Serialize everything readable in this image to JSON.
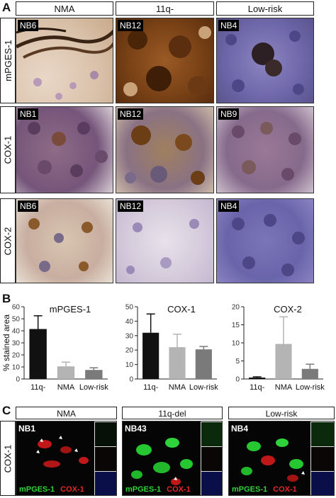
{
  "panel_a": {
    "letter": "A",
    "columns": [
      "NMA",
      "11q-",
      "Low-risk"
    ],
    "rows": [
      {
        "label": "mPGES-1",
        "samples": [
          "NB6",
          "NB12",
          "NB4"
        ]
      },
      {
        "label": "COX-1",
        "samples": [
          "NB1",
          "NB12",
          "NB9"
        ]
      },
      {
        "label": "COX-2",
        "samples": [
          "NB6",
          "NB12",
          "NB4"
        ]
      }
    ]
  },
  "panel_b": {
    "letter": "B"
  },
  "chart_data": [
    {
      "type": "bar",
      "title": "mPGES-1",
      "ylabel": "% stained area",
      "categories": [
        "11q-",
        "NMA",
        "Low-risk"
      ],
      "values": [
        41.5,
        10.5,
        7.5
      ],
      "errors": [
        11,
        3.5,
        1.8
      ],
      "ylim": [
        0,
        60
      ],
      "yticks": [
        0,
        10,
        20,
        30,
        40,
        50,
        60
      ],
      "colors": [
        "#111111",
        "#b4b4b4",
        "#7a7a7a"
      ]
    },
    {
      "type": "bar",
      "title": "COX-1",
      "ylabel": "",
      "categories": [
        "11q-",
        "NMA",
        "Low-risk"
      ],
      "values": [
        32,
        22,
        20.5
      ],
      "errors": [
        13,
        9,
        2
      ],
      "ylim": [
        0,
        50
      ],
      "yticks": [
        0,
        10,
        20,
        30,
        40,
        50
      ],
      "colors": [
        "#111111",
        "#b4b4b4",
        "#7a7a7a"
      ]
    },
    {
      "type": "bar",
      "title": "COX-2",
      "ylabel": "",
      "categories": [
        "11q-",
        "NMA",
        "Low-risk"
      ],
      "values": [
        0.4,
        9.7,
        2.8
      ],
      "errors": [
        0.2,
        7.5,
        1.3
      ],
      "ylim": [
        0,
        20
      ],
      "yticks": [
        0,
        5,
        10,
        15,
        20
      ],
      "colors": [
        "#111111",
        "#b4b4b4",
        "#7a7a7a"
      ]
    }
  ],
  "panel_c": {
    "letter": "C",
    "columns": [
      "NMA",
      "11q-del",
      "Low-risk"
    ],
    "row_label": "COX-1",
    "samples": [
      "NB1",
      "NB43",
      "NB4"
    ],
    "legend_green": "mPGES-1",
    "legend_red": "COX-1"
  }
}
